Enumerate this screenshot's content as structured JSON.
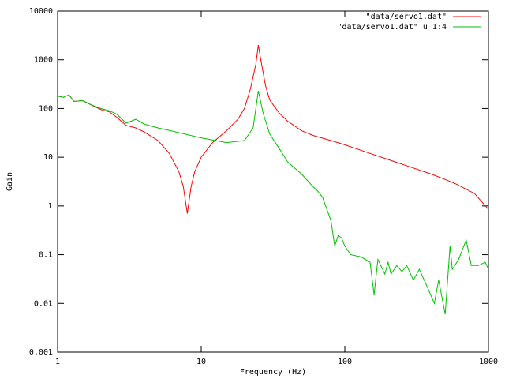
{
  "chart_data": {
    "type": "line",
    "xlabel": "Frequency (Hz)",
    "ylabel": "Gain",
    "xlog": true,
    "ylog": true,
    "xlim": [
      1,
      1000
    ],
    "ylim": [
      0.001,
      10000
    ],
    "xticks": [
      1,
      10,
      100,
      1000
    ],
    "yticks": [
      0.001,
      0.01,
      0.1,
      1,
      10,
      100,
      1000,
      10000
    ],
    "legend": "top-right",
    "series": [
      {
        "name": "\"data/servo1.dat\"",
        "color": "#ff0000",
        "x": [
          1,
          1.1,
          1.2,
          1.3,
          1.5,
          1.7,
          2,
          2.3,
          2.6,
          3,
          3.5,
          4,
          5,
          6,
          7,
          7.5,
          8,
          8.5,
          9,
          10,
          12,
          15,
          18,
          20,
          22,
          24,
          25,
          26,
          28,
          30,
          35,
          40,
          50,
          60,
          80,
          100,
          150,
          200,
          300,
          400,
          500,
          600,
          800,
          1000
        ],
        "values": [
          180,
          170,
          190,
          140,
          145,
          120,
          95,
          85,
          65,
          45,
          40,
          33,
          22,
          12,
          5,
          2.5,
          0.7,
          2.5,
          5,
          10,
          20,
          35,
          60,
          100,
          250,
          800,
          2000,
          1000,
          300,
          150,
          80,
          55,
          35,
          28,
          22,
          18,
          12,
          9,
          6,
          4.5,
          3.5,
          2.8,
          1.8,
          0.85
        ]
      },
      {
        "name": "\"data/servo1.dat\" u 1:4",
        "color": "#00c000",
        "x": [
          1,
          1.1,
          1.2,
          1.3,
          1.5,
          1.7,
          2,
          2.3,
          2.6,
          3,
          3.5,
          4,
          5,
          7,
          10,
          15,
          20,
          23,
          25,
          27,
          30,
          35,
          40,
          50,
          60,
          65,
          70,
          80,
          85,
          90,
          95,
          100,
          110,
          130,
          150,
          160,
          170,
          190,
          200,
          210,
          230,
          250,
          270,
          300,
          330,
          380,
          420,
          450,
          500,
          540,
          560,
          620,
          700,
          760,
          850,
          950,
          1000
        ],
        "values": [
          180,
          170,
          190,
          140,
          145,
          120,
          100,
          90,
          75,
          50,
          60,
          48,
          40,
          32,
          25,
          20,
          22,
          40,
          230,
          80,
          30,
          15,
          8,
          4.5,
          2.5,
          2,
          1.5,
          0.5,
          0.15,
          0.25,
          0.22,
          0.15,
          0.1,
          0.09,
          0.07,
          0.015,
          0.08,
          0.04,
          0.07,
          0.04,
          0.06,
          0.045,
          0.06,
          0.03,
          0.05,
          0.02,
          0.01,
          0.03,
          0.006,
          0.15,
          0.05,
          0.08,
          0.2,
          0.06,
          0.06,
          0.07,
          0.05
        ]
      }
    ]
  }
}
